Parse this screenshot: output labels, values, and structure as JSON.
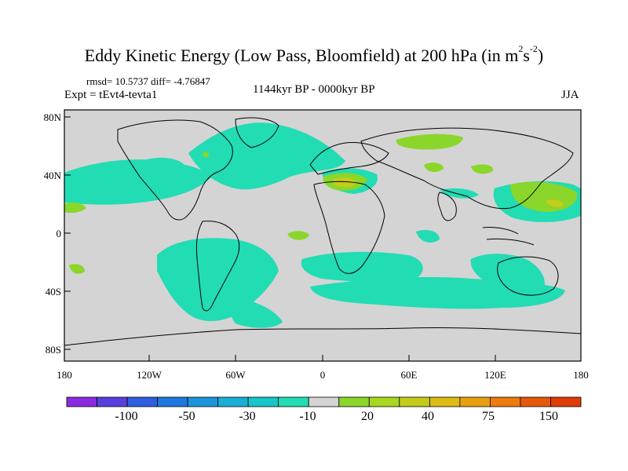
{
  "title": {
    "main": "Eddy Kinetic Energy (Low Pass, Bloomfield) at 200 hPa (in m",
    "sup1": "2",
    "mid": "s",
    "sup2": "-2",
    "end": ")"
  },
  "stats": "rmsd= 10.5737 diff= -4.76847",
  "expt": "Expt = tEvt4-tevta1",
  "period": "1144kyr BP - 0000kyr BP",
  "season": "JJA",
  "lat_labels": [
    "80N",
    "40N",
    "0",
    "40S",
    "80S"
  ],
  "lon_labels": [
    "180",
    "120W",
    "60W",
    "0",
    "60E",
    "120E",
    "180"
  ],
  "colorbar": {
    "labels": [
      "-100",
      "-50",
      "-30",
      "-10",
      "20",
      "40",
      "75",
      "150"
    ],
    "colors": [
      "#8a2be2",
      "#5a3fe0",
      "#2f5fe0",
      "#1e78e0",
      "#1a95da",
      "#19afd4",
      "#16c6c8",
      "#22dcb4",
      "#d4d4d4",
      "#8ad62a",
      "#a8d820",
      "#c4cc1a",
      "#dcbc14",
      "#e8a010",
      "#ec7c0c",
      "#e45a0a",
      "#e03c08"
    ]
  },
  "colors": {
    "land_bg": "#d4d4d4",
    "teal": "#22dcb4",
    "green": "#8ad62a",
    "yellow_green": "#c4cc1a"
  }
}
